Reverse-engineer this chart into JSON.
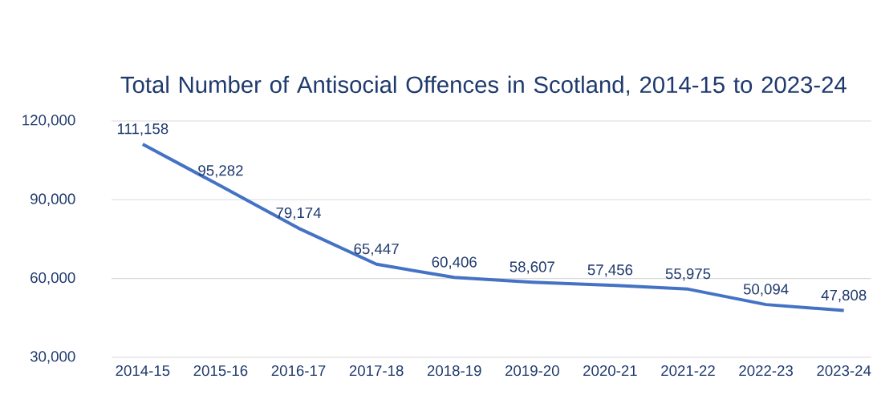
{
  "chart_data": {
    "type": "line",
    "title": "Total Number of Antisocial Offences in Scotland, 2014-15 to 2023-24",
    "categories": [
      "2014-15",
      "2015-16",
      "2016-17",
      "2017-18",
      "2018-19",
      "2019-20",
      "2020-21",
      "2021-22",
      "2022-23",
      "2023-24"
    ],
    "values": [
      111158,
      95282,
      79174,
      65447,
      60406,
      58607,
      57456,
      55975,
      50094,
      47808
    ],
    "color": "#4472c4",
    "ylim": [
      30000,
      120000
    ],
    "yticks": [
      {
        "value": 30000,
        "label": "30,000"
      },
      {
        "value": 60000,
        "label": "60,000"
      },
      {
        "value": 90000,
        "label": "90,000"
      },
      {
        "value": 120000,
        "label": "120,000"
      }
    ],
    "value_labels": [
      "111,158",
      "95,282",
      "79,174",
      "65,447",
      "60,406",
      "58,607",
      "57,456",
      "55,975",
      "50,094",
      "47,808"
    ],
    "grid": "y",
    "marker": "none",
    "line_style": "solid"
  }
}
